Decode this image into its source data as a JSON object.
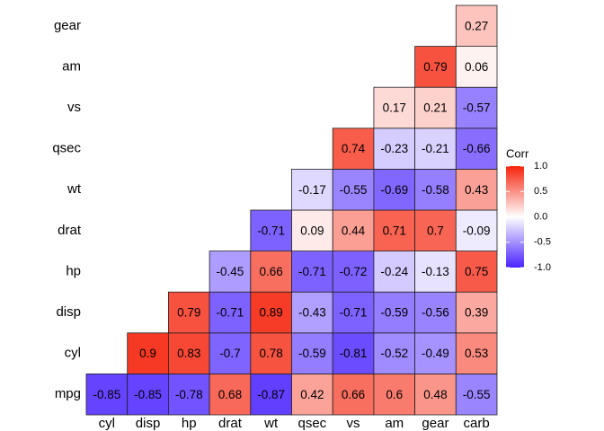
{
  "chart_data": {
    "type": "heatmap",
    "x_categories": [
      "cyl",
      "disp",
      "hp",
      "drat",
      "wt",
      "qsec",
      "vs",
      "am",
      "gear",
      "carb"
    ],
    "y_categories": [
      "mpg",
      "cyl",
      "disp",
      "hp",
      "drat",
      "wt",
      "qsec",
      "vs",
      "am",
      "gear"
    ],
    "values": [
      [
        -0.85,
        -0.85,
        -0.78,
        0.68,
        -0.87,
        0.42,
        0.66,
        0.6,
        0.48,
        -0.55
      ],
      [
        null,
        0.9,
        0.83,
        -0.7,
        0.78,
        -0.59,
        -0.81,
        -0.52,
        -0.49,
        0.53
      ],
      [
        null,
        null,
        0.79,
        -0.71,
        0.89,
        -0.43,
        -0.71,
        -0.59,
        -0.56,
        0.39
      ],
      [
        null,
        null,
        null,
        -0.45,
        0.66,
        -0.71,
        -0.72,
        -0.24,
        -0.13,
        0.75
      ],
      [
        null,
        null,
        null,
        null,
        -0.71,
        0.09,
        0.44,
        0.71,
        0.7,
        -0.09
      ],
      [
        null,
        null,
        null,
        null,
        null,
        -0.17,
        -0.55,
        -0.69,
        -0.58,
        0.43
      ],
      [
        null,
        null,
        null,
        null,
        null,
        null,
        0.74,
        -0.23,
        -0.21,
        -0.66
      ],
      [
        null,
        null,
        null,
        null,
        null,
        null,
        null,
        0.17,
        0.21,
        -0.57
      ],
      [
        null,
        null,
        null,
        null,
        null,
        null,
        null,
        null,
        0.79,
        0.06
      ],
      [
        null,
        null,
        null,
        null,
        null,
        null,
        null,
        null,
        null,
        0.27
      ]
    ],
    "legend_title": "Corr",
    "zlim": [
      -1,
      1
    ],
    "zticks": [
      {
        "value": 1,
        "label": "1.0"
      },
      {
        "value": 0.5,
        "label": "0.5"
      },
      {
        "value": 0,
        "label": "0.0"
      },
      {
        "value": -0.5,
        "label": "-0.5"
      },
      {
        "value": -1,
        "label": "-1.0"
      }
    ],
    "low_color": "#4a22ff",
    "mid_color": "#ffffff",
    "high_color": "#f5230c"
  }
}
